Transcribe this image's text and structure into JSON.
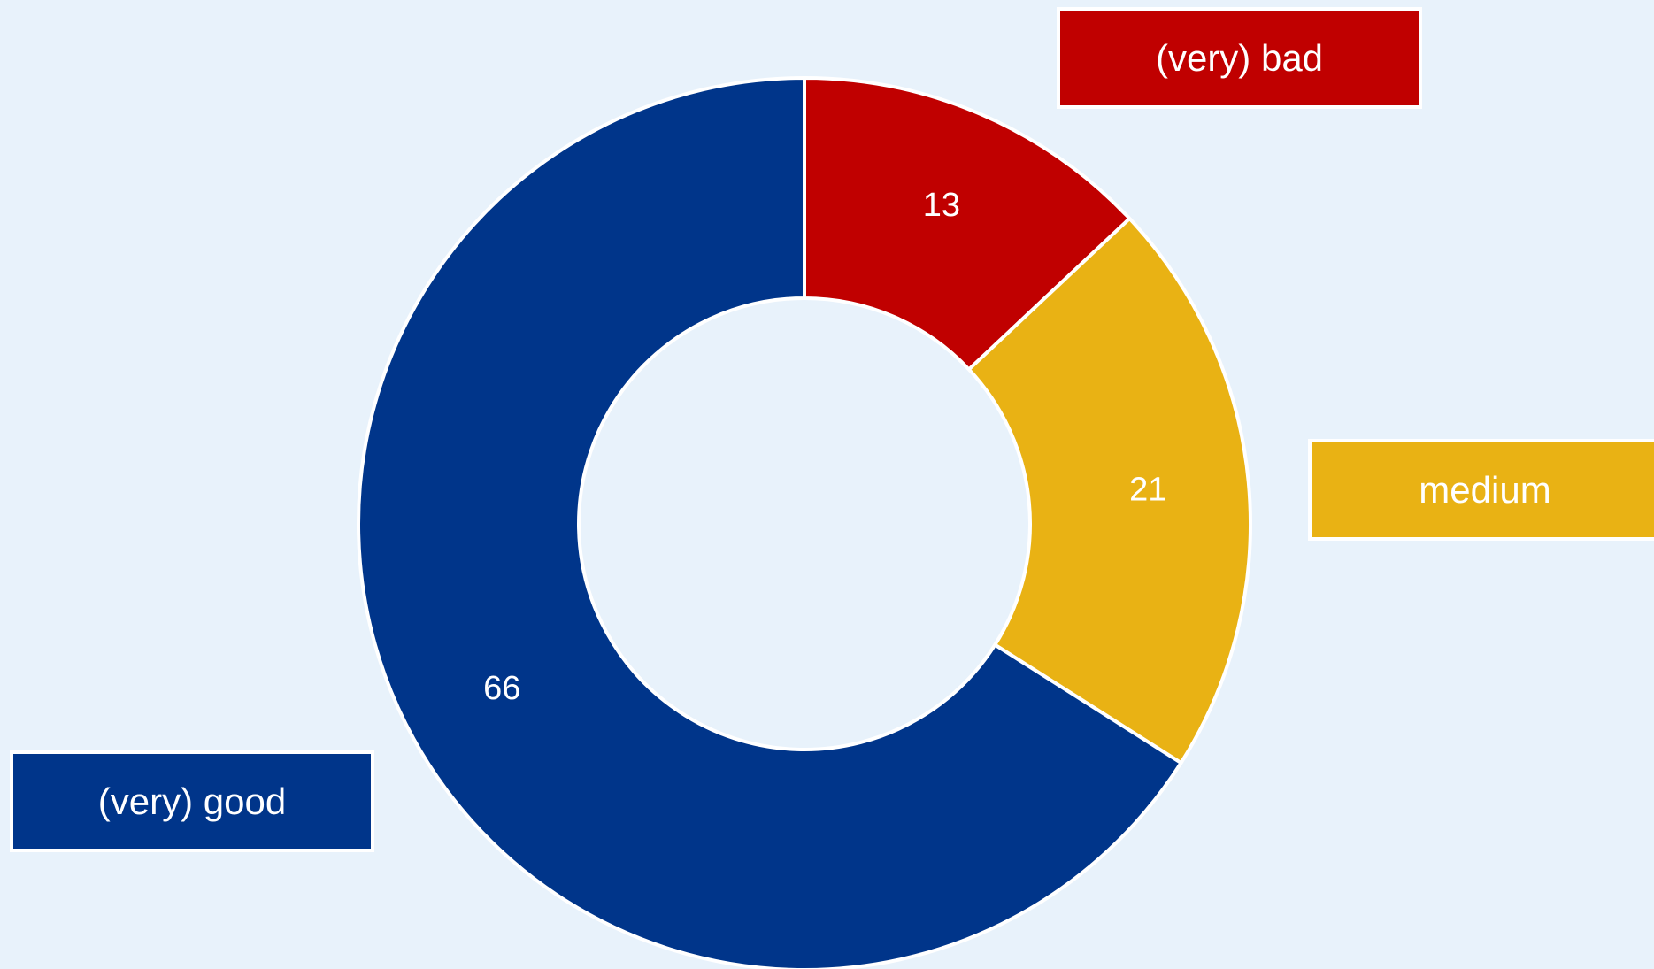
{
  "chart_data": {
    "type": "pie",
    "variant": "donut",
    "start_angle": "12 o'clock",
    "direction": "clockwise",
    "categories": [
      "(very) bad",
      "medium",
      "(very) good"
    ],
    "values": [
      13,
      21,
      66
    ],
    "value_labels": [
      "13",
      "21",
      "66"
    ],
    "colors": [
      "#c00000",
      "#e9b214",
      "#00358a"
    ],
    "legend": [
      {
        "label": "(very) bad",
        "color": "#c00000"
      },
      {
        "label": "medium",
        "color": "#e9b214"
      },
      {
        "label": "(very) good",
        "color": "#00358a"
      }
    ],
    "background": "#e8f2fb",
    "slice_border_color": "#ffffff"
  }
}
